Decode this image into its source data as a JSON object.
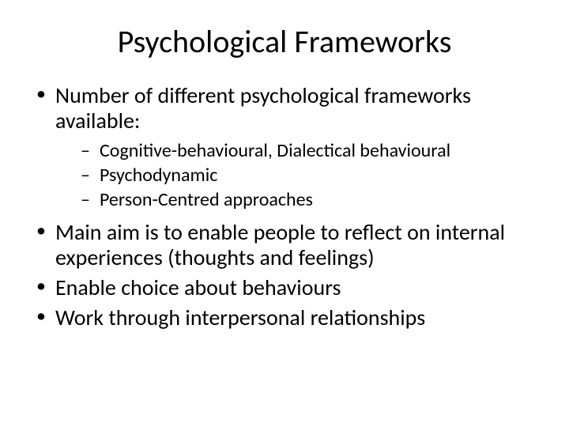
{
  "slide": {
    "title": "Psychological Frameworks",
    "background_color": "#ffffff",
    "text_color": "#000000",
    "title_fontsize": 40,
    "body_fontsize": 28,
    "sub_fontsize": 24,
    "bullets": [
      {
        "text": "Number of different psychological frameworks available:",
        "sub": [
          "Cognitive-behavioural, Dialectical behavioural",
          "Psychodynamic",
          "Person-Centred approaches"
        ]
      },
      {
        "text": "Main aim is to enable people to reflect on internal experiences (thoughts and feelings)"
      },
      {
        "text": "Enable choice about behaviours"
      },
      {
        "text": "Work through interpersonal relationships"
      }
    ]
  }
}
